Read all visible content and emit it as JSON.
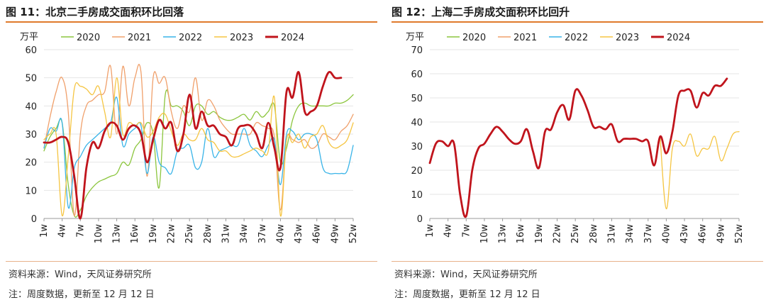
{
  "colors": {
    "2020": "#8cc63e",
    "2021": "#f0a06b",
    "2022": "#39b4e8",
    "2023": "#f5c542",
    "2024": "#c0141c",
    "accent_rule": "#e07a2c"
  },
  "panels": [
    {
      "title": "图 11：北京二手房成交面积环比回落",
      "source": "资料来源：Wind，天风证券研究所",
      "note": "注：周度数据，更新至 12 月 12 日"
    },
    {
      "title": "图 12：上海二手房成交面积环比回升",
      "source": "资料来源：Wind，天风证券研究所",
      "note": "注：周度数据，更新至 12 月 12 日"
    }
  ],
  "chart_data": [
    {
      "type": "line",
      "title": "图 11：北京二手房成交面积环比回落",
      "ylabel": "万平",
      "xlabel": "",
      "ylim": [
        0,
        60
      ],
      "yticks": [
        0,
        10,
        20,
        30,
        40,
        50,
        60
      ],
      "xlim": [
        1,
        52
      ],
      "xtick_labels": [
        "1w",
        "4w",
        "7w",
        "10w",
        "13w",
        "16w",
        "19w",
        "22w",
        "25w",
        "28w",
        "31w",
        "34w",
        "37w",
        "40w",
        "43w",
        "46w",
        "49w",
        "52w"
      ],
      "xtick_values": [
        1,
        4,
        7,
        10,
        13,
        16,
        19,
        22,
        25,
        28,
        31,
        34,
        37,
        40,
        43,
        46,
        49,
        52
      ],
      "grid": "y",
      "legend_position": "top",
      "series": [
        {
          "name": "2020",
          "x": [
            1,
            2,
            3,
            4,
            5,
            6,
            7,
            8,
            9,
            10,
            11,
            12,
            13,
            14,
            15,
            16,
            17,
            18,
            19,
            20,
            21,
            22,
            23,
            24,
            25,
            26,
            27,
            28,
            29,
            30,
            31,
            32,
            33,
            34,
            35,
            36,
            37,
            38,
            39,
            40,
            41,
            42,
            43,
            44,
            45,
            46,
            47,
            48,
            49,
            50,
            51,
            52
          ],
          "values": [
            24,
            29,
            32,
            34,
            12,
            1,
            3,
            8,
            11,
            13,
            14,
            15,
            16,
            20,
            19,
            25,
            28,
            34,
            30,
            11,
            44,
            40,
            40,
            38,
            33,
            40,
            40,
            37,
            38,
            36,
            35,
            35,
            36,
            37,
            35,
            38,
            36,
            38,
            40,
            20,
            25,
            35,
            40,
            41,
            40,
            40,
            40,
            40,
            41,
            41,
            42,
            44
          ]
        },
        {
          "name": "2021",
          "x": [
            1,
            2,
            3,
            4,
            5,
            6,
            7,
            8,
            9,
            10,
            11,
            12,
            13,
            14,
            15,
            16,
            17,
            18,
            19,
            20,
            21,
            22,
            23,
            24,
            25,
            26,
            27,
            28,
            29,
            30,
            31,
            32,
            33,
            34,
            35,
            36,
            37,
            38,
            39,
            40,
            41,
            42,
            43,
            44,
            45,
            46,
            47,
            48,
            49,
            50,
            51,
            52
          ],
          "values": [
            25,
            36,
            45,
            50,
            38,
            1,
            30,
            40,
            42,
            44,
            45,
            54,
            30,
            54,
            40,
            50,
            52,
            15,
            50,
            48,
            50,
            38,
            32,
            40,
            38,
            50,
            35,
            42,
            40,
            35,
            32,
            30,
            30,
            30,
            30,
            34,
            33,
            32,
            29,
            3,
            28,
            28,
            27,
            28,
            25,
            26,
            30,
            29,
            28,
            31,
            33,
            37
          ]
        },
        {
          "name": "2022",
          "x": [
            1,
            2,
            3,
            4,
            5,
            6,
            7,
            8,
            9,
            10,
            11,
            12,
            13,
            14,
            15,
            16,
            17,
            18,
            19,
            20,
            21,
            22,
            23,
            24,
            25,
            26,
            27,
            28,
            29,
            30,
            31,
            32,
            33,
            34,
            35,
            36,
            37,
            38,
            39,
            40,
            41,
            42,
            43,
            44,
            45,
            46,
            47,
            48,
            49,
            50,
            51,
            52
          ],
          "values": [
            25,
            32,
            31,
            34,
            4,
            18,
            22,
            26,
            28,
            30,
            32,
            34,
            43,
            26,
            30,
            32,
            33,
            16,
            29,
            20,
            18,
            16,
            24,
            25,
            26,
            18,
            20,
            32,
            22,
            24,
            25,
            26,
            26,
            32,
            26,
            24,
            22,
            26,
            28,
            12,
            30,
            31,
            28,
            30,
            30,
            28,
            18,
            16,
            16,
            16,
            17,
            26
          ]
        },
        {
          "name": "2023",
          "x": [
            1,
            2,
            3,
            4,
            5,
            6,
            7,
            8,
            9,
            10,
            11,
            12,
            13,
            14,
            15,
            16,
            17,
            18,
            19,
            20,
            21,
            22,
            23,
            24,
            25,
            26,
            27,
            28,
            29,
            30,
            31,
            32,
            33,
            34,
            35,
            36,
            37,
            38,
            39,
            40,
            41,
            42,
            43,
            44,
            45,
            46,
            47,
            48,
            49,
            50,
            51,
            52
          ],
          "values": [
            28,
            30,
            30,
            1,
            22,
            46,
            47,
            46,
            44,
            47,
            38,
            29,
            50,
            30,
            34,
            33,
            34,
            29,
            31,
            36,
            37,
            31,
            26,
            30,
            28,
            28,
            32,
            28,
            27,
            24,
            24,
            22,
            22,
            23,
            24,
            25,
            24,
            24,
            43,
            1,
            28,
            27,
            30,
            25,
            29,
            30,
            33,
            27,
            25,
            26,
            28,
            34
          ]
        },
        {
          "name": "2024",
          "x": [
            1,
            2,
            3,
            4,
            5,
            6,
            7,
            8,
            9,
            10,
            11,
            12,
            13,
            14,
            15,
            16,
            17,
            18,
            19,
            20,
            21,
            22,
            23,
            24,
            25,
            26,
            27,
            28,
            29,
            30,
            31,
            32,
            33,
            34,
            35,
            36,
            37,
            38,
            39,
            40,
            41,
            42,
            43,
            44,
            45,
            46,
            47,
            48,
            49,
            50
          ],
          "values": [
            27,
            27,
            28,
            29,
            27,
            15,
            0,
            18,
            27,
            25,
            31,
            34,
            33,
            28,
            32,
            33,
            30,
            20,
            28,
            35,
            32,
            34,
            24,
            30,
            44,
            32,
            38,
            33,
            33,
            30,
            29,
            26,
            32,
            33,
            33,
            30,
            25,
            34,
            25,
            18,
            45,
            43,
            52,
            38,
            38,
            40,
            47,
            52,
            50,
            50
          ]
        }
      ]
    },
    {
      "type": "line",
      "title": "图 12：上海二手房成交面积环比回升",
      "ylabel": "万平",
      "xlabel": "",
      "ylim": [
        0,
        70
      ],
      "yticks": [
        0,
        10,
        20,
        30,
        40,
        50,
        60,
        70
      ],
      "xlim": [
        1,
        52
      ],
      "xtick_labels": [
        "1w",
        "4w",
        "7w",
        "10w",
        "13w",
        "16w",
        "19w",
        "22w",
        "25w",
        "28w",
        "31w",
        "34w",
        "37w",
        "40w",
        "43w",
        "46w",
        "49w",
        "52w"
      ],
      "xtick_values": [
        1,
        4,
        7,
        10,
        13,
        16,
        19,
        22,
        25,
        28,
        31,
        34,
        37,
        40,
        43,
        46,
        49,
        52
      ],
      "grid": "y",
      "legend_position": "top",
      "series": [
        {
          "name": "2020",
          "x": [],
          "values": []
        },
        {
          "name": "2021",
          "x": [],
          "values": []
        },
        {
          "name": "2022",
          "x": [],
          "values": []
        },
        {
          "name": "2023",
          "x": [
            39,
            40,
            41,
            42,
            43,
            44,
            45,
            46,
            47,
            48,
            49,
            50,
            51,
            52
          ],
          "values": [
            33,
            4,
            29,
            32,
            30,
            35,
            26,
            29,
            29,
            34,
            24,
            29,
            35,
            36
          ]
        },
        {
          "name": "2024",
          "x": [
            1,
            2,
            3,
            4,
            5,
            6,
            7,
            8,
            9,
            10,
            11,
            12,
            13,
            14,
            15,
            16,
            17,
            18,
            19,
            20,
            21,
            22,
            23,
            24,
            25,
            26,
            27,
            28,
            29,
            30,
            31,
            32,
            33,
            34,
            35,
            36,
            37,
            38,
            39,
            40,
            41,
            42,
            43,
            44,
            45,
            46,
            47,
            48,
            49,
            50
          ],
          "values": [
            23,
            31,
            32,
            30,
            31,
            10,
            1,
            20,
            29,
            31,
            35,
            38,
            36,
            33,
            31,
            32,
            37,
            28,
            21,
            36,
            37,
            44,
            47,
            41,
            53,
            51,
            45,
            38,
            38,
            37,
            39,
            32,
            33,
            33,
            33,
            32,
            32,
            22,
            34,
            27,
            36,
            51,
            53,
            53,
            46,
            52,
            51,
            55,
            55,
            58
          ]
        }
      ]
    }
  ]
}
